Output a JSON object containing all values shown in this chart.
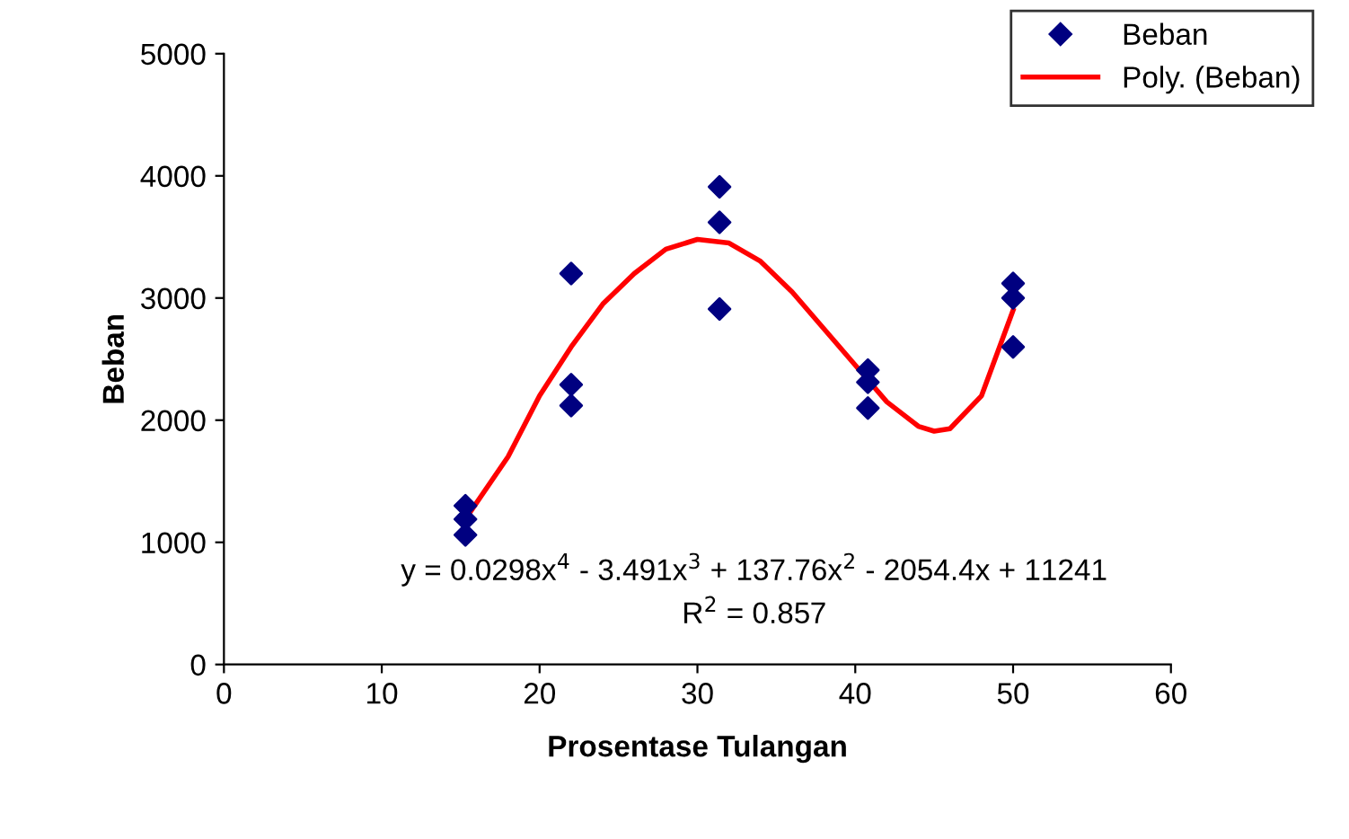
{
  "chart_data": {
    "type": "scatter",
    "xlabel": "Prosentase Tulangan",
    "ylabel": "Beban",
    "xlim": [
      0,
      60
    ],
    "xticks": [
      0,
      10,
      20,
      30,
      40,
      50,
      60
    ],
    "ylim": [
      0,
      5000
    ],
    "yticks": [
      0,
      1000,
      2000,
      3000,
      4000,
      5000
    ],
    "grid": false,
    "legend": "top right",
    "marker": "diamond",
    "series": [
      {
        "name": "Beban",
        "color": "#000080",
        "x": [
          15.3,
          15.3,
          15.3,
          22,
          22,
          22,
          31.4,
          31.4,
          31.4,
          40.8,
          40.8,
          40.8,
          50,
          50,
          50
        ],
        "values": [
          1300,
          1190,
          1060,
          3200,
          2290,
          2120,
          3910,
          3620,
          2910,
          2410,
          2310,
          2100,
          3120,
          3000,
          2600
        ]
      },
      {
        "name": "Poly. (Beban)",
        "type": "line",
        "marker": "none",
        "color": "#ff0000",
        "x": [
          15.3,
          18,
          20,
          22,
          24,
          26,
          28,
          30,
          32,
          34,
          36,
          38,
          40,
          42,
          44,
          45,
          46,
          48,
          50
        ],
        "values": [
          1190,
          1700,
          2200,
          2600,
          2950,
          3200,
          3400,
          3480,
          3450,
          3300,
          3050,
          2750,
          2450,
          2150,
          1950,
          1910,
          1930,
          2200,
          2900
        ]
      }
    ],
    "annotations": [
      "y = 0.0298x$^{4}$ - 3.491x$^{3}$ + 137.76x$^{2}$ - 2054.4x + 11241",
      "R$^{2}$ = 0.857"
    ]
  }
}
